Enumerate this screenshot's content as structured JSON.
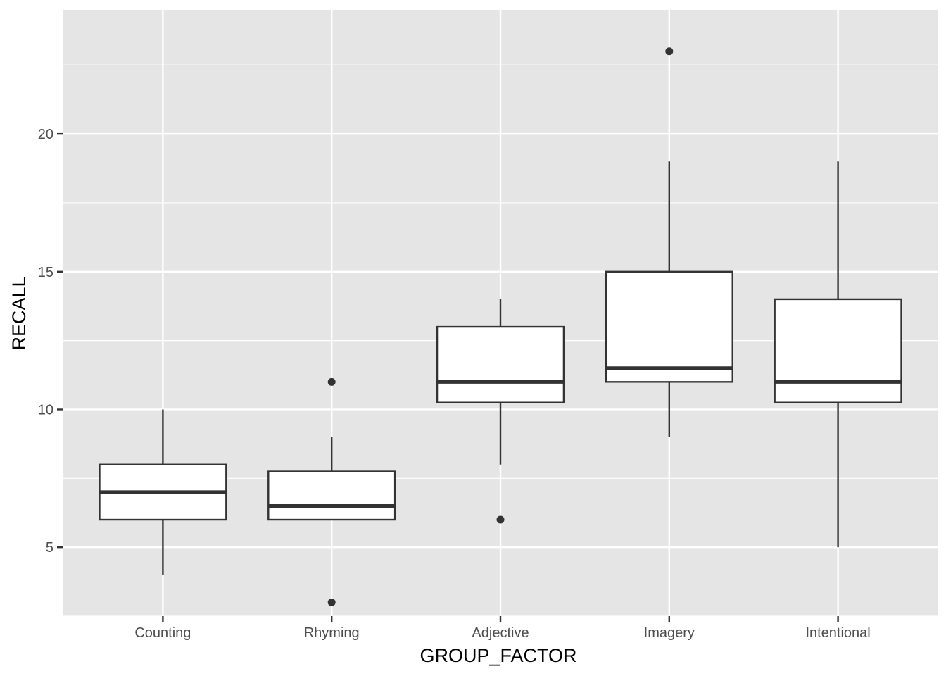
{
  "chart_data": {
    "type": "boxplot",
    "title": "",
    "xlabel": "GROUP_FACTOR",
    "ylabel": "RECALL",
    "ylim": [
      2.5,
      24.5
    ],
    "yticks": [
      5,
      10,
      15,
      20
    ],
    "grid": true,
    "legend": "none",
    "colors": {
      "panel_background": "#e5e5e5",
      "grid_line": "#ffffff",
      "box_fill": "#ffffff",
      "box_stroke": "#333333",
      "tick_text": "#4d4d4d",
      "axis_title": "#000000"
    },
    "categories": [
      "Counting",
      "Rhyming",
      "Adjective",
      "Imagery",
      "Intentional"
    ],
    "boxes": [
      {
        "category": "Counting",
        "whisker_low": 4,
        "q1": 6,
        "median": 7,
        "q3": 8,
        "whisker_high": 10,
        "outliers": []
      },
      {
        "category": "Rhyming",
        "whisker_low": 6,
        "q1": 6,
        "median": 6.5,
        "q3": 7.75,
        "whisker_high": 9,
        "outliers": [
          3,
          11
        ]
      },
      {
        "category": "Adjective",
        "whisker_low": 8,
        "q1": 10.25,
        "median": 11,
        "q3": 13,
        "whisker_high": 14,
        "outliers": [
          6
        ]
      },
      {
        "category": "Imagery",
        "whisker_low": 9,
        "q1": 11,
        "median": 11.5,
        "q3": 15,
        "whisker_high": 19,
        "outliers": [
          23
        ]
      },
      {
        "category": "Intentional",
        "whisker_low": 5,
        "q1": 10.25,
        "median": 11,
        "q3": 14,
        "whisker_high": 19,
        "outliers": []
      }
    ]
  }
}
